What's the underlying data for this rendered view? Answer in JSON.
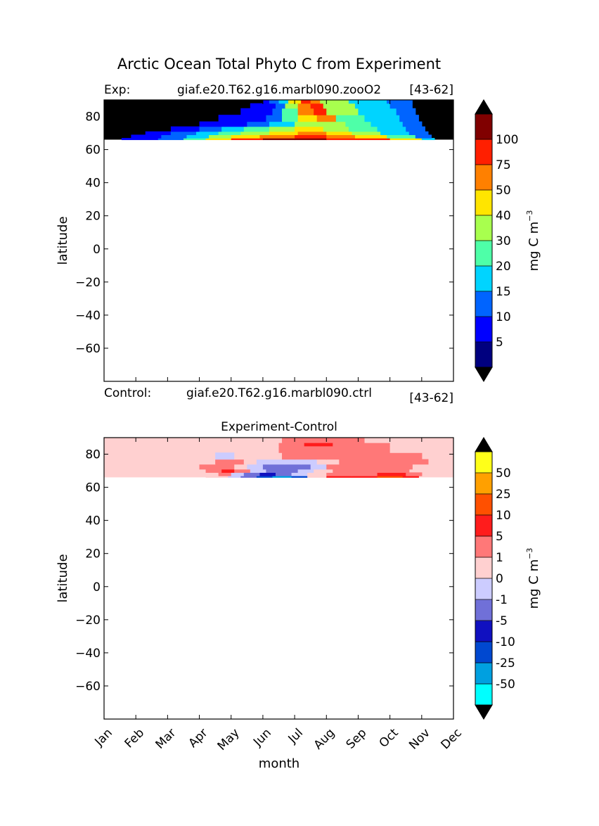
{
  "figure": {
    "suptitle": "Arctic Ocean Total Phyto C from Experiment",
    "exp_prefix": "Exp:",
    "exp_name": "giaf.e20.T62.g16.marbl090.zooO2",
    "exp_years": "[43-62]",
    "ctrl_prefix": "Control:",
    "ctrl_name": "giaf.e20.T62.g16.marbl090.ctrl",
    "ctrl_years": "[43-62]",
    "xlabel": "month"
  },
  "chart_data": [
    {
      "type": "heatmap",
      "title": "",
      "xlabel": "",
      "ylabel": "latitude",
      "x": [
        "Jan",
        "Feb",
        "Mar",
        "Apr",
        "May",
        "Jun",
        "Jul",
        "Aug",
        "Sep",
        "Oct",
        "Nov",
        "Dec"
      ],
      "xlim": [
        0,
        11
      ],
      "ylim": [
        -80,
        90
      ],
      "yticks": [
        -60,
        -40,
        -20,
        0,
        20,
        40,
        60,
        80
      ],
      "data_lat_range": [
        66,
        90
      ],
      "masked_color": "#000000",
      "colorbar": {
        "label": "mg C m",
        "label_exponent": "−3",
        "levels": [
          "5",
          "10",
          "15",
          "20",
          "30",
          "40",
          "50",
          "75",
          "100"
        ],
        "colors": [
          "#00007f",
          "#0000ff",
          "#0064ff",
          "#00d4ff",
          "#4effa8",
          "#a8ff4e",
          "#ffe500",
          "#ff8000",
          "#ff1f00",
          "#800000"
        ],
        "extend_low": "#000000",
        "extend_high": "#000000"
      },
      "bands": [
        {
          "lat_bottom": 66,
          "lat_top": 67,
          "x": [
            0.55,
            1.7,
            2.5,
            3.2,
            4.0,
            5.0,
            6.0,
            7.0,
            8.0,
            9.0,
            10.0,
            10.4
          ],
          "value": [
            1,
            2,
            4,
            6,
            8,
            9,
            9,
            8,
            8,
            6,
            3,
            1
          ]
        },
        {
          "lat_bottom": 67,
          "lat_top": 69,
          "x": [
            0.85,
            1.8,
            2.6,
            3.3,
            4.0,
            4.9,
            6.0,
            7.0,
            7.9,
            8.9,
            9.8,
            10.3
          ],
          "value": [
            1,
            2,
            3,
            5,
            6,
            7,
            8,
            7,
            6,
            4,
            2,
            1
          ]
        },
        {
          "lat_bottom": 69,
          "lat_top": 71,
          "x": [
            1.3,
            2.1,
            2.9,
            3.6,
            4.3,
            5.2,
            6.1,
            7.0,
            7.8,
            8.7,
            9.6,
            10.2
          ],
          "value": [
            1,
            2,
            3,
            4,
            5,
            6,
            7,
            6,
            5,
            3,
            2,
            1
          ]
        },
        {
          "lat_bottom": 71,
          "lat_top": 74,
          "x": [
            2.1,
            3.0,
            3.7,
            4.4,
            5.2,
            6.0,
            6.9,
            7.7,
            8.6,
            9.5,
            10.1
          ],
          "value": [
            1,
            2,
            3,
            4,
            5,
            6,
            5,
            4,
            3,
            2,
            1
          ]
        },
        {
          "lat_bottom": 74,
          "lat_top": 77,
          "x": [
            3.0,
            3.8,
            4.5,
            5.2,
            6.0,
            6.9,
            7.6,
            8.4,
            9.4,
            10.0
          ],
          "value": [
            1,
            1,
            2,
            3,
            5,
            5,
            4,
            3,
            2,
            1
          ]
        },
        {
          "lat_bottom": 77,
          "lat_top": 81,
          "x": [
            3.6,
            4.4,
            5.1,
            5.6,
            6.1,
            6.7,
            7.3,
            8.2,
            9.3,
            9.9
          ],
          "value": [
            1,
            1,
            2,
            4,
            6,
            7,
            4,
            3,
            2,
            1
          ]
        },
        {
          "lat_bottom": 81,
          "lat_top": 85,
          "x": [
            4.3,
            5.0,
            5.3,
            5.6,
            6.1,
            6.6,
            7.0,
            8.0,
            9.2,
            9.8
          ],
          "value": [
            1,
            1,
            2,
            4,
            7,
            8,
            5,
            3,
            2,
            1
          ]
        },
        {
          "lat_bottom": 85,
          "lat_top": 88,
          "x": [
            4.6,
            5.1,
            5.4,
            5.7,
            6.1,
            6.5,
            6.9,
            7.9,
            9.0,
            9.7
          ],
          "value": [
            1,
            1,
            2,
            5,
            7,
            8,
            5,
            3,
            2,
            1
          ]
        },
        {
          "lat_bottom": 88,
          "lat_top": 90,
          "x": [
            5.0,
            5.2,
            5.5,
            5.8,
            6.2,
            6.5,
            6.8,
            7.7,
            8.9,
            9.7
          ],
          "value": [
            1,
            2,
            3,
            6,
            8,
            7,
            5,
            3,
            2,
            1
          ]
        }
      ]
    },
    {
      "type": "heatmap",
      "title": "Experiment-Control",
      "xlabel": "month",
      "ylabel": "latitude",
      "x": [
        "Jan",
        "Feb",
        "Mar",
        "Apr",
        "May",
        "Jun",
        "Jul",
        "Aug",
        "Sep",
        "Oct",
        "Nov",
        "Dec"
      ],
      "xlim": [
        0,
        11
      ],
      "ylim": [
        -80,
        90
      ],
      "yticks": [
        -60,
        -40,
        -20,
        0,
        20,
        40,
        60,
        80
      ],
      "data_lat_range": [
        66,
        90
      ],
      "background_color": "#ffd0d0",
      "colorbar": {
        "label": "mg C m",
        "label_exponent": "−3",
        "levels": [
          "-50",
          "-25",
          "-10",
          "-5",
          "-1",
          "0",
          "1",
          "5",
          "10",
          "25",
          "50"
        ],
        "colors": [
          "#00ffff",
          "#00a0e0",
          "#0048d0",
          "#1010c0",
          "#7070d8",
          "#ccccff",
          "#ffd0d0",
          "#ff7878",
          "#ff1c1c",
          "#ff5000",
          "#ffa000",
          "#ffff19"
        ],
        "extend_low": "#000000",
        "extend_high": "#000000"
      },
      "bands": [
        {
          "lat_bottom": 66,
          "lat_top": 67,
          "x": [
            3.2,
            3.9,
            4.3,
            4.8,
            5.3,
            5.9,
            6.4,
            7.0,
            7.8,
            8.6,
            9.4,
            9.9
          ],
          "value": [
            6,
            5,
            4,
            2,
            1,
            2,
            6,
            8,
            8,
            9,
            8,
            7
          ]
        },
        {
          "lat_bottom": 67,
          "lat_top": 69,
          "x": [
            3.1,
            3.6,
            4.0,
            4.4,
            4.9,
            5.4,
            5.9,
            6.4,
            7.0,
            7.8,
            8.6,
            9.5,
            10.0
          ],
          "value": [
            6,
            7,
            5,
            4,
            3,
            4,
            5,
            6,
            7,
            7,
            8,
            7,
            6
          ]
        },
        {
          "lat_bottom": 69,
          "lat_top": 71,
          "x": [
            2.7,
            3.2,
            3.7,
            4.1,
            4.6,
            5.1,
            5.6,
            6.1,
            6.6,
            7.2,
            8.0,
            8.9,
            9.6
          ],
          "value": [
            6,
            7,
            8,
            7,
            5,
            4,
            4,
            5,
            6,
            7,
            7,
            7,
            6
          ]
        },
        {
          "lat_bottom": 71,
          "lat_top": 74,
          "x": [
            2.5,
            3.0,
            3.6,
            4.1,
            4.5,
            5.0,
            5.5,
            6.0,
            6.5,
            7.0,
            8.0,
            9.0,
            9.7
          ],
          "value": [
            6,
            7,
            7,
            6,
            5,
            4,
            4,
            4,
            5,
            7,
            7,
            7,
            6
          ]
        },
        {
          "lat_bottom": 74,
          "lat_top": 77,
          "x": [
            3.0,
            3.5,
            4.0,
            4.4,
            4.8,
            5.2,
            5.7,
            6.2,
            6.7,
            7.4,
            8.2,
            9.1,
            10.2
          ],
          "value": [
            6,
            7,
            7,
            6,
            5,
            5,
            5,
            5,
            6,
            7,
            7,
            7,
            6
          ]
        },
        {
          "lat_bottom": 77,
          "lat_top": 81,
          "x": [
            3.0,
            3.5,
            4.1,
            4.7,
            5.2,
            5.6,
            6.0,
            6.5,
            7.0,
            7.6,
            8.4,
            9.3,
            10.0
          ],
          "value": [
            6,
            5,
            6,
            6,
            6,
            7,
            7,
            7,
            7,
            7,
            7,
            7,
            6
          ]
        },
        {
          "lat_bottom": 81,
          "lat_top": 85,
          "x": [
            5.1,
            5.5,
            5.9,
            6.3,
            6.7,
            7.2,
            8.0,
            9.0,
            10.8
          ],
          "value": [
            6,
            7,
            7,
            7,
            7,
            7,
            7,
            6,
            5
          ]
        },
        {
          "lat_bottom": 85,
          "lat_top": 87,
          "x": [
            5.1,
            5.5,
            5.9,
            6.3,
            6.8,
            7.2,
            8.0,
            9.0,
            10.8
          ],
          "value": [
            6,
            7,
            7,
            8,
            8,
            7,
            7,
            6,
            5
          ]
        },
        {
          "lat_bottom": 87,
          "lat_top": 90,
          "x": [
            5.1,
            5.6,
            6.1,
            6.6,
            7.0,
            7.5,
            8.2,
            9.0,
            10.8
          ],
          "value": [
            6,
            7,
            7,
            7,
            7,
            7,
            6,
            6,
            6
          ]
        }
      ]
    }
  ]
}
